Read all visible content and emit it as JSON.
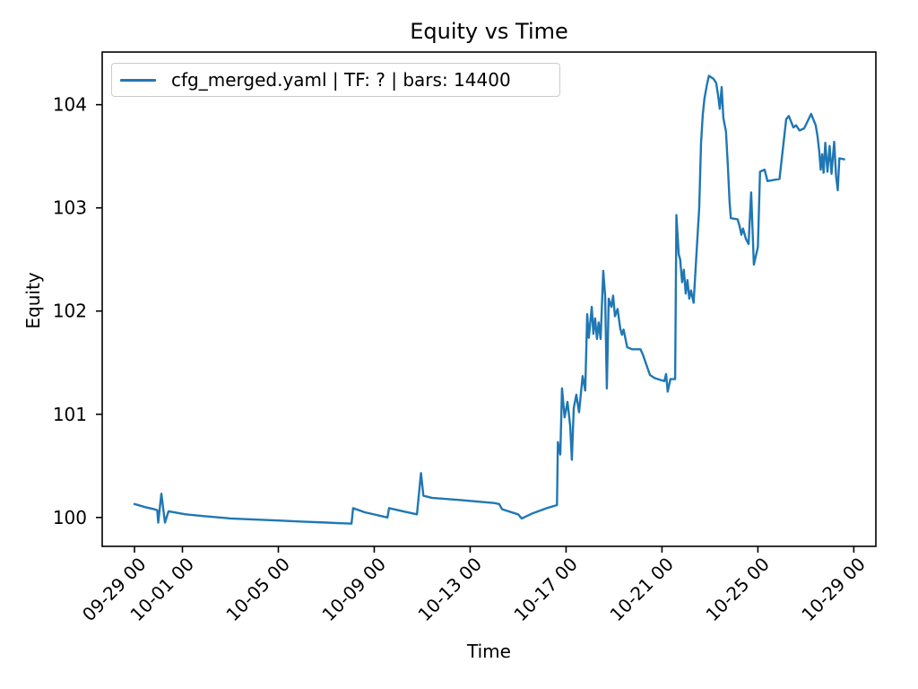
{
  "figure": {
    "background": "#ffffff",
    "text_color": "#000000",
    "spine_color": "#000000"
  },
  "chart_data": {
    "type": "line",
    "title": "Equity vs Time",
    "xlabel": "Time",
    "ylabel": "Equity",
    "grid": false,
    "legend": {
      "position": "upper-left",
      "entries": [
        {
          "label": "cfg_merged.yaml | TF: ? | bars: 14400",
          "color": "#1f77b4"
        }
      ]
    },
    "x_axis": {
      "unit": "days since 09-29 00:00",
      "range": [
        -1.346,
        30.92
      ],
      "tick_rotation_deg": 45,
      "ticks": [
        {
          "day": 0,
          "label": "09-29 00"
        },
        {
          "day": 2,
          "label": "10-01 00"
        },
        {
          "day": 6,
          "label": "10-05 00"
        },
        {
          "day": 10,
          "label": "10-09 00"
        },
        {
          "day": 14,
          "label": "10-13 00"
        },
        {
          "day": 18,
          "label": "10-17 00"
        },
        {
          "day": 22,
          "label": "10-21 00"
        },
        {
          "day": 26,
          "label": "10-25 00"
        },
        {
          "day": 30,
          "label": "10-29 00"
        }
      ]
    },
    "y_axis": {
      "range": [
        99.72,
        104.51
      ],
      "ticks": [
        100,
        101,
        102,
        103,
        104
      ]
    },
    "series": [
      {
        "name": "cfg_merged.yaml | TF: ? | bars: 14400",
        "color": "#1f77b4",
        "line_width": 2.4,
        "points": [
          [
            0.0,
            100.13
          ],
          [
            0.45,
            100.1
          ],
          [
            0.82,
            100.08
          ],
          [
            0.95,
            100.07
          ],
          [
            0.99,
            99.95
          ],
          [
            1.12,
            100.23
          ],
          [
            1.27,
            99.95
          ],
          [
            1.42,
            100.06
          ],
          [
            2.13,
            100.03
          ],
          [
            3.0,
            100.01
          ],
          [
            4.0,
            99.99
          ],
          [
            5.0,
            99.98
          ],
          [
            6.0,
            99.97
          ],
          [
            7.0,
            99.96
          ],
          [
            8.0,
            99.95
          ],
          [
            9.05,
            99.94
          ],
          [
            9.12,
            100.09
          ],
          [
            9.6,
            100.05
          ],
          [
            10.55,
            100.0
          ],
          [
            10.62,
            100.09
          ],
          [
            11.2,
            100.06
          ],
          [
            11.78,
            100.03
          ],
          [
            11.95,
            100.43
          ],
          [
            12.05,
            100.21
          ],
          [
            12.4,
            100.19
          ],
          [
            13.5,
            100.17
          ],
          [
            15.0,
            100.14
          ],
          [
            15.21,
            100.13
          ],
          [
            15.33,
            100.08
          ],
          [
            16.0,
            100.03
          ],
          [
            16.15,
            99.99
          ],
          [
            16.6,
            100.04
          ],
          [
            17.2,
            100.09
          ],
          [
            17.62,
            100.12
          ],
          [
            17.66,
            100.73
          ],
          [
            17.76,
            100.61
          ],
          [
            17.83,
            101.25
          ],
          [
            17.94,
            100.97
          ],
          [
            18.06,
            101.12
          ],
          [
            18.17,
            100.89
          ],
          [
            18.24,
            100.56
          ],
          [
            18.32,
            101.06
          ],
          [
            18.43,
            101.19
          ],
          [
            18.54,
            101.02
          ],
          [
            18.69,
            101.37
          ],
          [
            18.8,
            101.23
          ],
          [
            18.88,
            101.97
          ],
          [
            18.95,
            101.74
          ],
          [
            19.07,
            102.04
          ],
          [
            19.14,
            101.78
          ],
          [
            19.21,
            101.93
          ],
          [
            19.29,
            101.73
          ],
          [
            19.36,
            101.89
          ],
          [
            19.44,
            101.73
          ],
          [
            19.55,
            102.39
          ],
          [
            19.63,
            102.15
          ],
          [
            19.7,
            101.25
          ],
          [
            19.78,
            102.12
          ],
          [
            19.89,
            102.04
          ],
          [
            19.96,
            102.15
          ],
          [
            20.04,
            101.95
          ],
          [
            20.15,
            102.02
          ],
          [
            20.26,
            101.83
          ],
          [
            20.33,
            101.77
          ],
          [
            20.4,
            101.82
          ],
          [
            20.55,
            101.65
          ],
          [
            20.75,
            101.63
          ],
          [
            21.1,
            101.63
          ],
          [
            21.2,
            101.58
          ],
          [
            21.35,
            101.48
          ],
          [
            21.5,
            101.38
          ],
          [
            21.7,
            101.35
          ],
          [
            22.1,
            101.32
          ],
          [
            22.17,
            101.39
          ],
          [
            22.24,
            101.22
          ],
          [
            22.35,
            101.34
          ],
          [
            22.55,
            101.34
          ],
          [
            22.6,
            102.93
          ],
          [
            22.7,
            102.55
          ],
          [
            22.76,
            102.5
          ],
          [
            22.84,
            102.28
          ],
          [
            22.91,
            102.4
          ],
          [
            22.99,
            102.17
          ],
          [
            23.06,
            102.3
          ],
          [
            23.14,
            102.12
          ],
          [
            23.21,
            102.2
          ],
          [
            23.32,
            102.08
          ],
          [
            23.45,
            102.6
          ],
          [
            23.55,
            102.99
          ],
          [
            23.63,
            103.63
          ],
          [
            23.7,
            103.9
          ],
          [
            23.77,
            104.06
          ],
          [
            23.88,
            104.2
          ],
          [
            23.96,
            104.28
          ],
          [
            24.15,
            104.25
          ],
          [
            24.26,
            104.21
          ],
          [
            24.34,
            104.09
          ],
          [
            24.41,
            103.96
          ],
          [
            24.49,
            104.17
          ],
          [
            24.56,
            103.87
          ],
          [
            24.67,
            103.74
          ],
          [
            24.75,
            103.39
          ],
          [
            24.82,
            103.06
          ],
          [
            24.87,
            102.9
          ],
          [
            25.15,
            102.89
          ],
          [
            25.23,
            102.83
          ],
          [
            25.31,
            102.74
          ],
          [
            25.38,
            102.8
          ],
          [
            25.5,
            102.7
          ],
          [
            25.61,
            102.65
          ],
          [
            25.72,
            103.15
          ],
          [
            25.83,
            102.45
          ],
          [
            26.0,
            102.62
          ],
          [
            26.09,
            103.35
          ],
          [
            26.28,
            103.37
          ],
          [
            26.4,
            103.26
          ],
          [
            26.9,
            103.28
          ],
          [
            27.18,
            103.86
          ],
          [
            27.29,
            103.89
          ],
          [
            27.48,
            103.78
          ],
          [
            27.59,
            103.8
          ],
          [
            27.74,
            103.75
          ],
          [
            27.93,
            103.77
          ],
          [
            28.22,
            103.91
          ],
          [
            28.41,
            103.8
          ],
          [
            28.49,
            103.69
          ],
          [
            28.56,
            103.54
          ],
          [
            28.62,
            103.37
          ],
          [
            28.68,
            103.52
          ],
          [
            28.74,
            103.34
          ],
          [
            28.81,
            103.63
          ],
          [
            28.9,
            103.35
          ],
          [
            28.99,
            103.6
          ],
          [
            29.07,
            103.33
          ],
          [
            29.18,
            103.64
          ],
          [
            29.26,
            103.31
          ],
          [
            29.33,
            103.17
          ],
          [
            29.4,
            103.48
          ],
          [
            29.6,
            103.47
          ]
        ]
      }
    ]
  }
}
